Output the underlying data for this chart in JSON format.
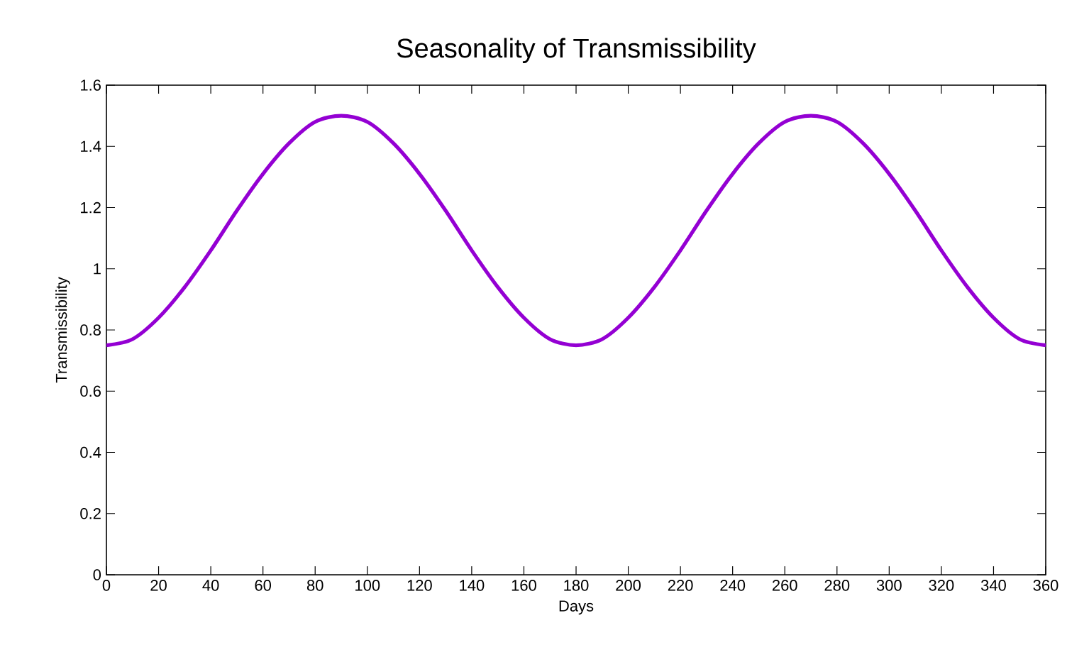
{
  "chart_data": {
    "type": "line",
    "title": "Seasonality of Transmissibility",
    "xlabel": "Days",
    "ylabel": "Transmissibility",
    "series": [
      {
        "color": "#9400d3",
        "x": [
          0,
          10,
          20,
          30,
          40,
          50,
          60,
          70,
          80,
          90,
          100,
          110,
          120,
          130,
          140,
          150,
          160,
          170,
          180,
          190,
          200,
          210,
          220,
          230,
          240,
          250,
          260,
          270,
          280,
          290,
          300,
          310,
          320,
          330,
          340,
          350,
          360
        ],
        "values": [
          0.75,
          0.77,
          0.84,
          0.94,
          1.06,
          1.19,
          1.31,
          1.41,
          1.48,
          1.5,
          1.48,
          1.41,
          1.31,
          1.19,
          1.06,
          0.94,
          0.84,
          0.77,
          0.75,
          0.77,
          0.84,
          0.94,
          1.06,
          1.19,
          1.31,
          1.41,
          1.48,
          1.5,
          1.48,
          1.41,
          1.31,
          1.19,
          1.06,
          0.94,
          0.84,
          0.77,
          0.75
        ]
      }
    ],
    "xlim": [
      0,
      360
    ],
    "xticks": [
      0,
      20,
      40,
      60,
      80,
      100,
      120,
      140,
      160,
      180,
      200,
      220,
      240,
      260,
      280,
      300,
      320,
      340,
      360
    ],
    "ylim": [
      0,
      1.6
    ],
    "yticks": [
      0,
      0.2,
      0.4,
      0.6,
      0.8,
      1,
      1.2,
      1.4,
      1.6
    ],
    "marker": "none",
    "line_style": "solid"
  }
}
